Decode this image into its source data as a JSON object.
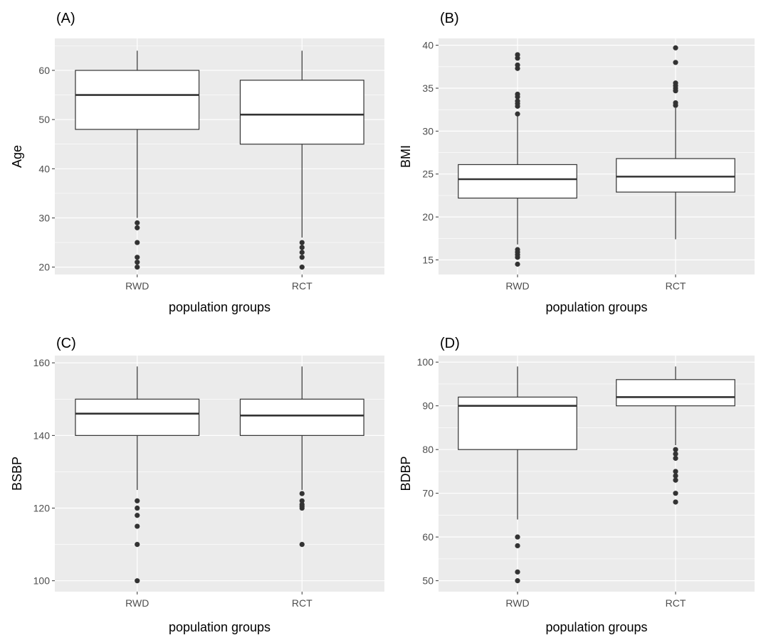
{
  "colors": {
    "panel_background": "#ebebeb",
    "grid_major": "#ffffff",
    "box_fill": "#ffffff",
    "box_stroke": "#333333",
    "outlier": "#333333",
    "tick_text": "#4d4d4d"
  },
  "chart_data": [
    {
      "type": "boxplot",
      "panel_label": "(A)",
      "xlabel": "population groups",
      "ylabel": "Age",
      "ylim": [
        18.5,
        66.5
      ],
      "yticks": [
        20,
        30,
        40,
        50,
        60
      ],
      "grid": true,
      "categories": [
        "RWD",
        "RCT"
      ],
      "boxes": [
        {
          "category": "RWD",
          "lower_whisker": 30,
          "q1": 48,
          "median": 55,
          "q3": 60,
          "upper_whisker": 64,
          "outliers": [
            20,
            21,
            22,
            25,
            28,
            29
          ]
        },
        {
          "category": "RCT",
          "lower_whisker": 26,
          "q1": 45,
          "median": 51,
          "q3": 58,
          "upper_whisker": 64,
          "outliers": [
            20,
            22,
            23,
            24,
            25
          ]
        }
      ]
    },
    {
      "type": "boxplot",
      "panel_label": "(B)",
      "xlabel": "population groups",
      "ylabel": "BMI",
      "ylim": [
        13.3,
        40.8
      ],
      "yticks": [
        15,
        20,
        25,
        30,
        35,
        40
      ],
      "grid": true,
      "categories": [
        "RWD",
        "RCT"
      ],
      "boxes": [
        {
          "category": "RWD",
          "lower_whisker": 16.8,
          "q1": 22.2,
          "median": 24.4,
          "q3": 26.1,
          "upper_whisker": 31.9,
          "outliers": [
            14.5,
            15.3,
            15.6,
            15.9,
            16.2,
            32.0,
            32.9,
            33.2,
            33.5,
            34.0,
            34.3,
            37.3,
            37.7,
            38.5,
            38.9
          ]
        },
        {
          "category": "RCT",
          "lower_whisker": 17.4,
          "q1": 22.9,
          "median": 24.7,
          "q3": 26.8,
          "upper_whisker": 32.7,
          "outliers": [
            33.0,
            33.3,
            34.7,
            35.0,
            35.3,
            35.6,
            38.0,
            39.7
          ]
        }
      ]
    },
    {
      "type": "boxplot",
      "panel_label": "(C)",
      "xlabel": "population groups",
      "ylabel": "BSBP",
      "ylim": [
        97,
        162
      ],
      "yticks": [
        100,
        120,
        140,
        160
      ],
      "grid": true,
      "categories": [
        "RWD",
        "RCT"
      ],
      "boxes": [
        {
          "category": "RWD",
          "lower_whisker": 125,
          "q1": 140,
          "median": 146,
          "q3": 150,
          "upper_whisker": 159,
          "outliers": [
            100,
            110,
            115,
            118,
            120,
            122
          ]
        },
        {
          "category": "RCT",
          "lower_whisker": 125,
          "q1": 140,
          "median": 145.5,
          "q3": 150,
          "upper_whisker": 159,
          "outliers": [
            110,
            120,
            120.5,
            121,
            122,
            124
          ]
        }
      ]
    },
    {
      "type": "boxplot",
      "panel_label": "(D)",
      "xlabel": "population groups",
      "ylabel": "BDBP",
      "ylim": [
        47.5,
        101.5
      ],
      "yticks": [
        50,
        60,
        70,
        80,
        90,
        100
      ],
      "grid": true,
      "categories": [
        "RWD",
        "RCT"
      ],
      "boxes": [
        {
          "category": "RWD",
          "lower_whisker": 64,
          "q1": 80,
          "median": 90,
          "q3": 92,
          "upper_whisker": 99,
          "outliers": [
            50,
            52,
            58,
            60
          ]
        },
        {
          "category": "RCT",
          "lower_whisker": 81,
          "q1": 90,
          "median": 92,
          "q3": 96,
          "upper_whisker": 99,
          "outliers": [
            68,
            70,
            73,
            74,
            75,
            78,
            79,
            80
          ]
        }
      ]
    }
  ]
}
